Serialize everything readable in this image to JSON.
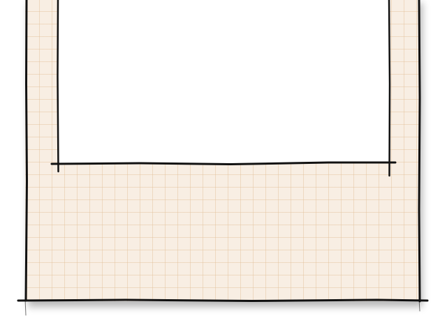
{
  "canvas": {
    "board_color": "#f8eee3",
    "grid_color": "#e2be96",
    "panel_color": "#ffffff",
    "ink_color": "#111111",
    "board_style": "graph-paper",
    "border_style": "hand-drawn"
  }
}
